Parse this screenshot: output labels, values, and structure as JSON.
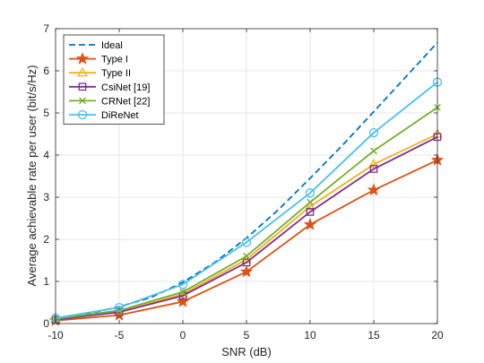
{
  "chart_data": {
    "type": "line",
    "title": "",
    "xlabel": "SNR (dB)",
    "ylabel": "Average achievable rate per user (bit/s/Hz)",
    "xlim": [
      -10,
      20
    ],
    "ylim": [
      0,
      7
    ],
    "xticks": [
      -10,
      -5,
      0,
      5,
      10,
      15,
      20
    ],
    "yticks": [
      0,
      1,
      2,
      3,
      4,
      5,
      6,
      7
    ],
    "grid": true,
    "legend_position": "top-left",
    "series": [
      {
        "name": "Ideal",
        "color": "#0072BD",
        "dash": "dashed",
        "marker": "none",
        "x": [
          -10,
          -7.5,
          -5,
          -2.5,
          0,
          2.5,
          5,
          7.5,
          10,
          12.5,
          15,
          17.5,
          20
        ],
        "y": [
          0.13,
          0.23,
          0.4,
          0.62,
          0.98,
          1.45,
          2.03,
          2.7,
          3.45,
          4.22,
          5.03,
          5.85,
          6.67
        ]
      },
      {
        "name": "Type I",
        "color": "#D95319",
        "marker": "star",
        "x": [
          -10,
          -5,
          0,
          5,
          10,
          15,
          20
        ],
        "y": [
          0.07,
          0.2,
          0.52,
          1.23,
          2.35,
          3.17,
          3.88
        ]
      },
      {
        "name": "Type II",
        "color": "#EDB120",
        "marker": "triangle",
        "x": [
          -10,
          -5,
          0,
          5,
          10,
          15,
          20
        ],
        "y": [
          0.1,
          0.28,
          0.7,
          1.52,
          2.78,
          3.78,
          4.5
        ]
      },
      {
        "name": "CsiNet [19]",
        "color": "#7E2F8E",
        "marker": "square",
        "x": [
          -10,
          -5,
          0,
          5,
          10,
          15,
          20
        ],
        "y": [
          0.09,
          0.27,
          0.66,
          1.45,
          2.65,
          3.67,
          4.43
        ]
      },
      {
        "name": "CRNet [22]",
        "color": "#77AC30",
        "marker": "x",
        "x": [
          -10,
          -5,
          0,
          5,
          10,
          15,
          20
        ],
        "y": [
          0.11,
          0.31,
          0.75,
          1.6,
          2.88,
          4.1,
          5.13
        ]
      },
      {
        "name": "DiReNet",
        "color": "#4DBEEE",
        "marker": "circle",
        "x": [
          -10,
          -5,
          0,
          5,
          10,
          15,
          20
        ],
        "y": [
          0.13,
          0.38,
          0.93,
          1.93,
          3.1,
          4.53,
          5.73
        ]
      }
    ]
  }
}
